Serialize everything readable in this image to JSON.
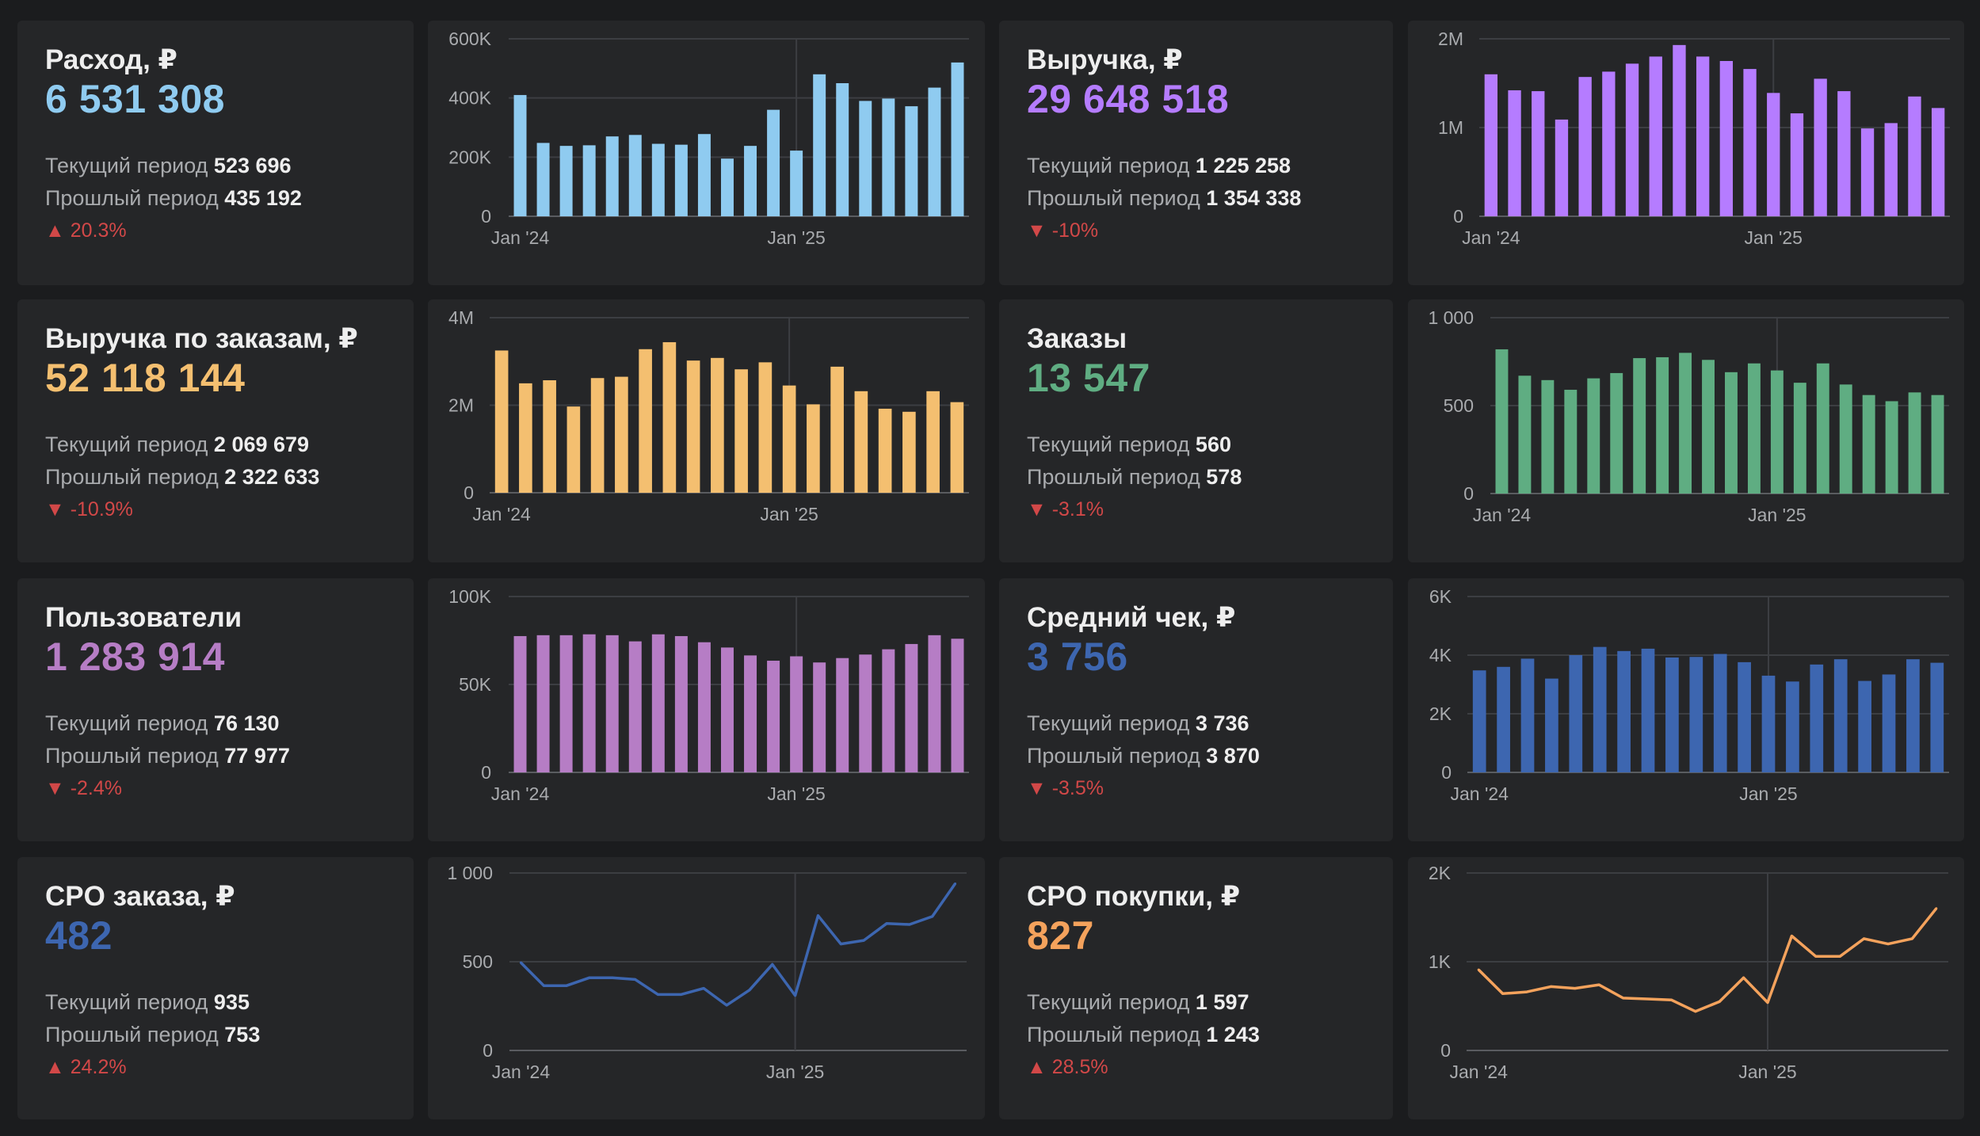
{
  "labels": {
    "current": "Текущий период",
    "previous": "Прошлый период"
  },
  "metrics": [
    {
      "title": "Расход, ₽",
      "value": "6 531 308",
      "current": "523 696",
      "previous": "435 192",
      "delta": "▲ 20.3%",
      "color": "#8fcbf0"
    },
    {
      "title": "Выручка, ₽",
      "value": "29 648 518",
      "current": "1 225 258",
      "previous": "1 354 338",
      "delta": "▼ -10%",
      "color": "#b57cff"
    },
    {
      "title": "Выручка по заказам, ₽",
      "value": "52 118 144",
      "current": "2 069 679",
      "previous": "2 322 633",
      "delta": "▼ -10.9%",
      "color": "#f4bf70"
    },
    {
      "title": "Заказы",
      "value": "13 547",
      "current": "560",
      "previous": "578",
      "delta": "▼ -3.1%",
      "color": "#5fad82"
    },
    {
      "title": "Пользователи",
      "value": "1 283 914",
      "current": "76 130",
      "previous": "77 977",
      "delta": "▼ -2.4%",
      "color": "#b67dc5"
    },
    {
      "title": "Средний чек, ₽",
      "value": "3 756",
      "current": "3 736",
      "previous": "3 870",
      "delta": "▼ -3.5%",
      "color": "#3d66b0"
    },
    {
      "title": "CPO заказа, ₽",
      "value": "482",
      "current": "935",
      "previous": "753",
      "delta": "▲ 24.2%",
      "color": "#3d66b0"
    },
    {
      "title": "CPO покупки, ₽",
      "value": "827",
      "current": "1 597",
      "previous": "1 243",
      "delta": "▲ 28.5%",
      "color": "#f4a25c"
    }
  ],
  "chart_data": [
    {
      "type": "bar",
      "color": "#8fcbf0",
      "ylim": [
        0,
        600000
      ],
      "yticks": [
        0,
        200000,
        400000,
        600000
      ],
      "ytick_labels": [
        "0",
        "200K",
        "400K",
        "600K"
      ],
      "xtick_labels": [
        {
          "index": 0,
          "label": "Jan '24"
        },
        {
          "index": 12,
          "label": "Jan '25"
        }
      ],
      "values": [
        410000,
        248000,
        238000,
        240000,
        270000,
        275000,
        245000,
        242000,
        278000,
        195000,
        238000,
        360000,
        222000,
        480000,
        450000,
        390000,
        398000,
        372000,
        435000,
        520000
      ]
    },
    {
      "type": "bar",
      "color": "#b57cff",
      "ylim": [
        0,
        2000000
      ],
      "yticks": [
        0,
        1000000,
        2000000
      ],
      "ytick_labels": [
        "0",
        "1M",
        "2M"
      ],
      "xtick_labels": [
        {
          "index": 0,
          "label": "Jan '24"
        },
        {
          "index": 12,
          "label": "Jan '25"
        }
      ],
      "values": [
        1600000,
        1420000,
        1410000,
        1090000,
        1570000,
        1630000,
        1720000,
        1800000,
        1930000,
        1800000,
        1750000,
        1660000,
        1390000,
        1160000,
        1550000,
        1410000,
        990000,
        1050000,
        1350000,
        1220000
      ]
    },
    {
      "type": "bar",
      "color": "#f4bf70",
      "ylim": [
        0,
        4000000
      ],
      "yticks": [
        0,
        2000000,
        4000000
      ],
      "ytick_labels": [
        "0",
        "2M",
        "4M"
      ],
      "xtick_labels": [
        {
          "index": 0,
          "label": "Jan '24"
        },
        {
          "index": 12,
          "label": "Jan '25"
        }
      ],
      "values": [
        3250000,
        2500000,
        2570000,
        1970000,
        2620000,
        2650000,
        3280000,
        3440000,
        3020000,
        3080000,
        2820000,
        2980000,
        2450000,
        2020000,
        2880000,
        2320000,
        1920000,
        1850000,
        2320000,
        2070000
      ]
    },
    {
      "type": "bar",
      "color": "#5fad82",
      "ylim": [
        0,
        1000
      ],
      "yticks": [
        0,
        500,
        1000
      ],
      "ytick_labels": [
        "0",
        "500",
        "1 000"
      ],
      "xtick_labels": [
        {
          "index": 0,
          "label": "Jan '24"
        },
        {
          "index": 12,
          "label": "Jan '25"
        }
      ],
      "values": [
        820,
        670,
        645,
        590,
        655,
        685,
        770,
        775,
        800,
        760,
        690,
        740,
        700,
        630,
        740,
        620,
        560,
        525,
        575,
        560
      ]
    },
    {
      "type": "bar",
      "color": "#b67dc5",
      "ylim": [
        0,
        100000
      ],
      "yticks": [
        0,
        50000,
        100000
      ],
      "ytick_labels": [
        "0",
        "50K",
        "100K"
      ],
      "xtick_labels": [
        {
          "index": 0,
          "label": "Jan '24"
        },
        {
          "index": 12,
          "label": "Jan '25"
        }
      ],
      "values": [
        77500,
        78000,
        78000,
        78500,
        78000,
        74500,
        78500,
        77500,
        74000,
        71000,
        66500,
        63500,
        66000,
        62500,
        65000,
        67000,
        70000,
        73000,
        78000,
        76000
      ]
    },
    {
      "type": "bar",
      "color": "#3d66b0",
      "ylim": [
        0,
        6000
      ],
      "yticks": [
        0,
        2000,
        4000,
        6000
      ],
      "ytick_labels": [
        "0",
        "2K",
        "4K",
        "6K"
      ],
      "xtick_labels": [
        {
          "index": 0,
          "label": "Jan '24"
        },
        {
          "index": 12,
          "label": "Jan '25"
        }
      ],
      "values": [
        3480,
        3600,
        3880,
        3200,
        4000,
        4280,
        4140,
        4220,
        3920,
        3940,
        4040,
        3760,
        3300,
        3100,
        3680,
        3860,
        3120,
        3340,
        3860,
        3740
      ]
    },
    {
      "type": "line",
      "color": "#3d66b0",
      "ylim": [
        0,
        1000
      ],
      "yticks": [
        0,
        500,
        1000
      ],
      "ytick_labels": [
        "0",
        "500",
        "1 000"
      ],
      "xtick_labels": [
        {
          "index": 0,
          "label": "Jan '24"
        },
        {
          "index": 12,
          "label": "Jan '25"
        }
      ],
      "values": [
        495,
        365,
        365,
        410,
        410,
        400,
        315,
        315,
        350,
        255,
        340,
        485,
        310,
        760,
        600,
        620,
        715,
        710,
        755,
        940
      ]
    },
    {
      "type": "line",
      "color": "#f4a25c",
      "ylim": [
        0,
        2000
      ],
      "yticks": [
        0,
        1000,
        2000
      ],
      "ytick_labels": [
        "0",
        "1K",
        "2K"
      ],
      "xtick_labels": [
        {
          "index": 0,
          "label": "Jan '24"
        },
        {
          "index": 12,
          "label": "Jan '25"
        }
      ],
      "values": [
        910,
        640,
        660,
        720,
        700,
        740,
        590,
        580,
        570,
        440,
        550,
        820,
        540,
        1290,
        1060,
        1060,
        1260,
        1200,
        1260,
        1600
      ]
    }
  ]
}
